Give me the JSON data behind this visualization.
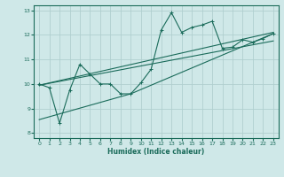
{
  "xlabel": "Humidex (Indice chaleur)",
  "xlim": [
    -0.5,
    23.5
  ],
  "ylim": [
    7.8,
    13.2
  ],
  "yticks": [
    8,
    9,
    10,
    11,
    12,
    13
  ],
  "xticks": [
    0,
    1,
    2,
    3,
    4,
    5,
    6,
    7,
    8,
    9,
    10,
    11,
    12,
    13,
    14,
    15,
    16,
    17,
    18,
    19,
    20,
    21,
    22,
    23
  ],
  "bg_color": "#cfe8e8",
  "line_color": "#1a6b5a",
  "grid_color": "#b0cfcf",
  "main_x": [
    0,
    1,
    2,
    3,
    4,
    5,
    6,
    7,
    8,
    9,
    10,
    11,
    12,
    13,
    14,
    15,
    16,
    17,
    18,
    19,
    20,
    21,
    22,
    23
  ],
  "main_y": [
    10.0,
    9.85,
    8.4,
    9.75,
    10.8,
    10.4,
    10.0,
    10.0,
    9.6,
    9.6,
    10.05,
    10.6,
    12.2,
    12.9,
    12.1,
    12.3,
    12.4,
    12.55,
    11.45,
    11.5,
    11.8,
    11.7,
    11.85,
    12.05
  ],
  "trend1_x": [
    0,
    23
  ],
  "trend1_y": [
    9.95,
    12.1
  ],
  "trend2_x": [
    0,
    23
  ],
  "trend2_y": [
    9.95,
    11.75
  ],
  "trend3_x": [
    0,
    9,
    23
  ],
  "trend3_y": [
    8.55,
    9.6,
    12.05
  ]
}
